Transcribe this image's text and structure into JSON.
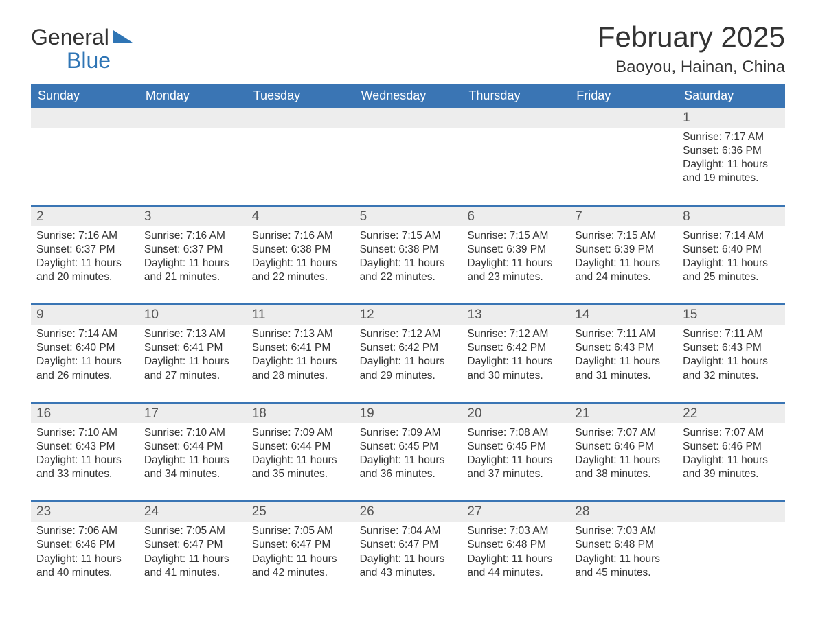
{
  "brand": {
    "word1": "General",
    "word2": "Blue",
    "logo_color": "#2f75b5"
  },
  "header": {
    "month_title": "February 2025",
    "location": "Baoyou, Hainan, China"
  },
  "style": {
    "header_bg": "#3a75b4",
    "header_text": "#ffffff",
    "row_separator": "#3a75b4",
    "daynum_bg": "#ededed",
    "body_text": "#333333",
    "page_bg": "#ffffff",
    "title_fontsize": 42,
    "location_fontsize": 24,
    "dayheader_fontsize": 18,
    "body_fontsize": 15.5
  },
  "labels": {
    "sunrise": "Sunrise:",
    "sunset": "Sunset:",
    "daylight": "Daylight:"
  },
  "day_names": [
    "Sunday",
    "Monday",
    "Tuesday",
    "Wednesday",
    "Thursday",
    "Friday",
    "Saturday"
  ],
  "weeks": [
    [
      null,
      null,
      null,
      null,
      null,
      null,
      {
        "n": "1",
        "sunrise": "7:17 AM",
        "sunset": "6:36 PM",
        "daylight": "11 hours and 19 minutes."
      }
    ],
    [
      {
        "n": "2",
        "sunrise": "7:16 AM",
        "sunset": "6:37 PM",
        "daylight": "11 hours and 20 minutes."
      },
      {
        "n": "3",
        "sunrise": "7:16 AM",
        "sunset": "6:37 PM",
        "daylight": "11 hours and 21 minutes."
      },
      {
        "n": "4",
        "sunrise": "7:16 AM",
        "sunset": "6:38 PM",
        "daylight": "11 hours and 22 minutes."
      },
      {
        "n": "5",
        "sunrise": "7:15 AM",
        "sunset": "6:38 PM",
        "daylight": "11 hours and 22 minutes."
      },
      {
        "n": "6",
        "sunrise": "7:15 AM",
        "sunset": "6:39 PM",
        "daylight": "11 hours and 23 minutes."
      },
      {
        "n": "7",
        "sunrise": "7:15 AM",
        "sunset": "6:39 PM",
        "daylight": "11 hours and 24 minutes."
      },
      {
        "n": "8",
        "sunrise": "7:14 AM",
        "sunset": "6:40 PM",
        "daylight": "11 hours and 25 minutes."
      }
    ],
    [
      {
        "n": "9",
        "sunrise": "7:14 AM",
        "sunset": "6:40 PM",
        "daylight": "11 hours and 26 minutes."
      },
      {
        "n": "10",
        "sunrise": "7:13 AM",
        "sunset": "6:41 PM",
        "daylight": "11 hours and 27 minutes."
      },
      {
        "n": "11",
        "sunrise": "7:13 AM",
        "sunset": "6:41 PM",
        "daylight": "11 hours and 28 minutes."
      },
      {
        "n": "12",
        "sunrise": "7:12 AM",
        "sunset": "6:42 PM",
        "daylight": "11 hours and 29 minutes."
      },
      {
        "n": "13",
        "sunrise": "7:12 AM",
        "sunset": "6:42 PM",
        "daylight": "11 hours and 30 minutes."
      },
      {
        "n": "14",
        "sunrise": "7:11 AM",
        "sunset": "6:43 PM",
        "daylight": "11 hours and 31 minutes."
      },
      {
        "n": "15",
        "sunrise": "7:11 AM",
        "sunset": "6:43 PM",
        "daylight": "11 hours and 32 minutes."
      }
    ],
    [
      {
        "n": "16",
        "sunrise": "7:10 AM",
        "sunset": "6:43 PM",
        "daylight": "11 hours and 33 minutes."
      },
      {
        "n": "17",
        "sunrise": "7:10 AM",
        "sunset": "6:44 PM",
        "daylight": "11 hours and 34 minutes."
      },
      {
        "n": "18",
        "sunrise": "7:09 AM",
        "sunset": "6:44 PM",
        "daylight": "11 hours and 35 minutes."
      },
      {
        "n": "19",
        "sunrise": "7:09 AM",
        "sunset": "6:45 PM",
        "daylight": "11 hours and 36 minutes."
      },
      {
        "n": "20",
        "sunrise": "7:08 AM",
        "sunset": "6:45 PM",
        "daylight": "11 hours and 37 minutes."
      },
      {
        "n": "21",
        "sunrise": "7:07 AM",
        "sunset": "6:46 PM",
        "daylight": "11 hours and 38 minutes."
      },
      {
        "n": "22",
        "sunrise": "7:07 AM",
        "sunset": "6:46 PM",
        "daylight": "11 hours and 39 minutes."
      }
    ],
    [
      {
        "n": "23",
        "sunrise": "7:06 AM",
        "sunset": "6:46 PM",
        "daylight": "11 hours and 40 minutes."
      },
      {
        "n": "24",
        "sunrise": "7:05 AM",
        "sunset": "6:47 PM",
        "daylight": "11 hours and 41 minutes."
      },
      {
        "n": "25",
        "sunrise": "7:05 AM",
        "sunset": "6:47 PM",
        "daylight": "11 hours and 42 minutes."
      },
      {
        "n": "26",
        "sunrise": "7:04 AM",
        "sunset": "6:47 PM",
        "daylight": "11 hours and 43 minutes."
      },
      {
        "n": "27",
        "sunrise": "7:03 AM",
        "sunset": "6:48 PM",
        "daylight": "11 hours and 44 minutes."
      },
      {
        "n": "28",
        "sunrise": "7:03 AM",
        "sunset": "6:48 PM",
        "daylight": "11 hours and 45 minutes."
      },
      null
    ]
  ]
}
